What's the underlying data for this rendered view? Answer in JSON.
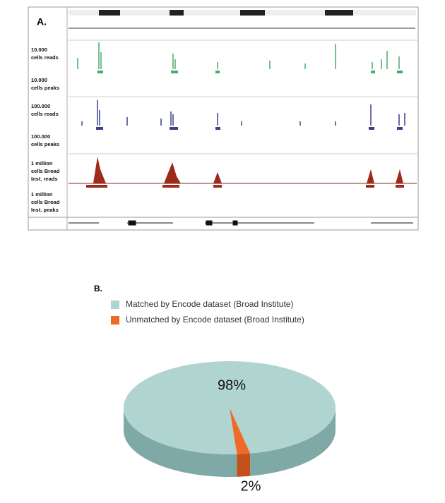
{
  "panel_a": {
    "label": "A.",
    "tracks": [
      "10.000 cells reads",
      "10.000 cells peaks",
      "100.000 cells reads",
      "100.000 cells peaks",
      "1 million cells Broad Inst. reads",
      "1 million cells Broad Inst. peaks"
    ]
  },
  "chart_data": {
    "type": "pie",
    "title": "B.",
    "categories": [
      "Matched by Encode dataset (Broad Institute)",
      "Unmatched by Encode dataset (Broad Institute)"
    ],
    "values": [
      98,
      2
    ],
    "value_labels": [
      "98%",
      "2%"
    ],
    "colors": [
      "#b0d4cf",
      "#ee6a26"
    ]
  }
}
